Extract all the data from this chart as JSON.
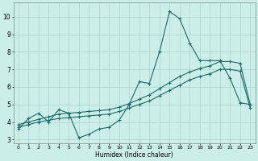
{
  "xlabel": "Humidex (Indice chaleur)",
  "bg_color": "#cceee8",
  "line_color": "#1a6b6b",
  "grid_color": "#aad4cc",
  "xlim": [
    -0.5,
    23.5
  ],
  "ylim": [
    2.8,
    10.8
  ],
  "yticks": [
    3,
    4,
    5,
    6,
    7,
    8,
    9,
    10
  ],
  "xticks": [
    0,
    1,
    2,
    3,
    4,
    5,
    6,
    7,
    8,
    9,
    10,
    11,
    12,
    13,
    14,
    15,
    16,
    17,
    18,
    19,
    20,
    21,
    22,
    23
  ],
  "line1_x": [
    0,
    1,
    2,
    3,
    4,
    5,
    6,
    7,
    8,
    9,
    10,
    11,
    12,
    13,
    14,
    15,
    16,
    17,
    18,
    19,
    20,
    21,
    22,
    23
  ],
  "line1_y": [
    3.6,
    4.2,
    4.5,
    4.0,
    4.7,
    4.5,
    3.1,
    3.3,
    3.6,
    3.7,
    4.1,
    5.0,
    6.3,
    6.2,
    8.0,
    10.3,
    9.9,
    8.5,
    7.5,
    7.5,
    7.5,
    6.5,
    5.1,
    5.0
  ],
  "line2_x": [
    0,
    1,
    2,
    3,
    4,
    5,
    6,
    7,
    8,
    9,
    10,
    11,
    12,
    13,
    14,
    15,
    16,
    17,
    18,
    19,
    20,
    21,
    22,
    23
  ],
  "line2_y": [
    3.85,
    4.0,
    4.15,
    4.3,
    4.45,
    4.5,
    4.55,
    4.6,
    4.65,
    4.7,
    4.85,
    5.05,
    5.3,
    5.55,
    5.9,
    6.25,
    6.6,
    6.85,
    7.05,
    7.2,
    7.45,
    7.45,
    7.35,
    5.0
  ],
  "line3_x": [
    0,
    1,
    2,
    3,
    4,
    5,
    6,
    7,
    8,
    9,
    10,
    11,
    12,
    13,
    14,
    15,
    16,
    17,
    18,
    19,
    20,
    21,
    22,
    23
  ],
  "line3_y": [
    3.7,
    3.85,
    4.0,
    4.1,
    4.2,
    4.25,
    4.3,
    4.35,
    4.4,
    4.45,
    4.6,
    4.8,
    5.0,
    5.2,
    5.5,
    5.8,
    6.1,
    6.4,
    6.6,
    6.75,
    7.0,
    7.0,
    6.9,
    4.8
  ]
}
